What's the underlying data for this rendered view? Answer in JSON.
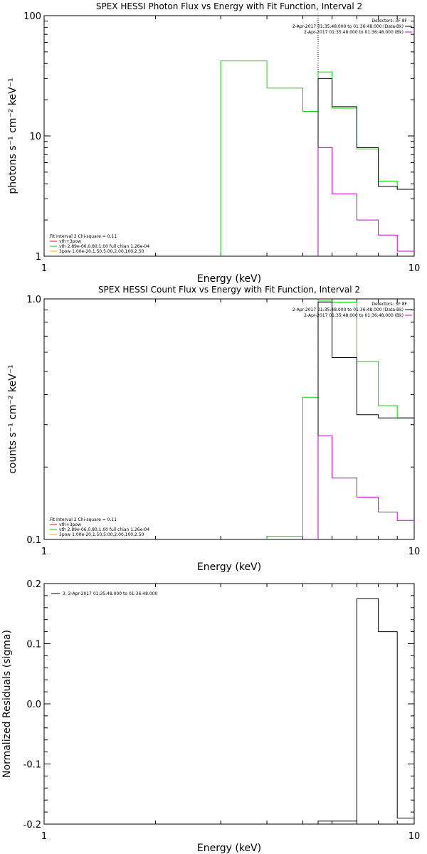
{
  "chart_data": [
    {
      "type": "line",
      "title": "SPEX HESSI Photon Flux vs Energy with Fit Function, Interval 2",
      "xlabel": "Energy (keV)",
      "ylabel": "photons s⁻¹ cm⁻² keV⁻¹",
      "xscale": "log",
      "yscale": "log",
      "xlim": [
        1,
        10
      ],
      "ylim": [
        1,
        100
      ],
      "xticks": [
        {
          "v": 1,
          "label": "1"
        },
        {
          "v": 10,
          "label": "10"
        }
      ],
      "yticks": [
        {
          "v": 1,
          "label": "1"
        },
        {
          "v": 10,
          "label": "10"
        },
        {
          "v": 100,
          "label": "100"
        }
      ],
      "vline": 5.5,
      "legend_tr": {
        "title": "Detectors: 3F 8F",
        "entries": [
          {
            "label": "2-Apr-2017 01:35:48.000 to 01:36:48.000 (Data-Bk)",
            "color": "#000000"
          },
          {
            "label": "2-Apr-2017 01:35:48.000 to 01:36:48.000 (Bk)",
            "color": "#cc00cc"
          }
        ]
      },
      "legend_bl": {
        "title": "Fit Interval 2   Chi-square = 0.11",
        "entries": [
          {
            "label": "vth+3pow",
            "color": "#ff0000"
          },
          {
            "label": "vth 2.89e-06,0.80,1.00  full chian 1.26e-04",
            "color": "#00cc00"
          },
          {
            "label": "3pow 1.00e-20,1.50,5.00,2.00,100,2.50",
            "color": "#ffaa00"
          }
        ]
      },
      "series": [
        {
          "role": "fit",
          "color": "#00dd00",
          "edges": [
            3,
            4,
            5,
            5.5,
            6,
            7,
            8,
            9,
            10
          ],
          "values": [
            42,
            25,
            16,
            34,
            17,
            7.8,
            4.2,
            3.6
          ]
        },
        {
          "role": "data",
          "color": "#000000",
          "edges": [
            5.5,
            6,
            7,
            8,
            9,
            10
          ],
          "values": [
            30,
            17.5,
            8,
            3.8,
            3.6
          ]
        },
        {
          "role": "background",
          "color": "#cc00cc",
          "edges": [
            5.5,
            6,
            7,
            8,
            9,
            10
          ],
          "values": [
            8,
            3.3,
            2.0,
            1.5,
            1.1
          ]
        }
      ]
    },
    {
      "type": "line",
      "title": "SPEX HESSI Count Flux vs Energy with Fit Function, Interval 2",
      "xlabel": "Energy (keV)",
      "ylabel": "counts s⁻¹ cm⁻² keV⁻¹",
      "xscale": "log",
      "yscale": "log",
      "xlim": [
        1,
        10
      ],
      "ylim": [
        0.1,
        1.0
      ],
      "xticks": [
        {
          "v": 1,
          "label": "1"
        },
        {
          "v": 10,
          "label": "10"
        }
      ],
      "yticks": [
        {
          "v": 0.1,
          "label": "0.1"
        },
        {
          "v": 1.0,
          "label": "1.0"
        }
      ],
      "vline": 5.5,
      "legend_tr": {
        "title": "Detectors: 3F 8F",
        "entries": [
          {
            "label": "2-Apr-2017 01:35:48.000 to 01:36:48.000 (Data-Bk)",
            "color": "#000000"
          },
          {
            "label": "2-Apr-2017 01:35:48.000 to 01:36:48.000 (Bk)",
            "color": "#cc00cc"
          }
        ]
      },
      "legend_bl": {
        "title": "Fit Interval 2   Chi-square = 0.11",
        "entries": [
          {
            "label": "vth+3pow",
            "color": "#ff0000"
          },
          {
            "label": "vth 2.89e-06,0.80,1.00  full chian 1.26e-04",
            "color": "#00cc00"
          },
          {
            "label": "3pow 1.00e-20,1.50,5.00,2.00,100,2.50",
            "color": "#ffaa00"
          }
        ]
      },
      "series": [
        {
          "role": "fit",
          "color": "#00dd00",
          "edges": [
            4,
            5,
            5.5,
            6,
            7,
            8,
            9,
            10
          ],
          "values": [
            0.103,
            0.39,
            0.98,
            0.97,
            0.55,
            0.36,
            0.32
          ]
        },
        {
          "role": "data",
          "color": "#000000",
          "edges": [
            5.5,
            6,
            7,
            8,
            9,
            10
          ],
          "values": [
            0.97,
            0.57,
            0.33,
            0.32,
            0.32
          ]
        },
        {
          "role": "background",
          "color": "#cc00cc",
          "edges": [
            5.5,
            6,
            7,
            8,
            9,
            10
          ],
          "values": [
            0.27,
            0.18,
            0.15,
            0.13,
            0.12
          ]
        }
      ]
    },
    {
      "type": "line",
      "title": "",
      "xlabel": "Energy (keV)",
      "ylabel": "Normalized Residuals (sigma)",
      "xscale": "log",
      "yscale": "linear",
      "xlim": [
        1,
        10
      ],
      "ylim": [
        -0.2,
        0.2
      ],
      "xticks": [
        {
          "v": 1,
          "label": "1"
        },
        {
          "v": 10,
          "label": "10"
        }
      ],
      "yticks": [
        {
          "v": -0.2,
          "label": "-0.2"
        },
        {
          "v": -0.1,
          "label": "-0.1"
        },
        {
          "v": 0,
          "label": "0.0"
        },
        {
          "v": 0.1,
          "label": "0.1"
        },
        {
          "v": 0.2,
          "label": "0.2"
        }
      ],
      "legend_tl": {
        "entries": [
          {
            "label": "3.  2-Apr-2017 01:35:48.000 to 01:36:48.000",
            "color": "#000000"
          }
        ]
      },
      "series": [
        {
          "role": "residual",
          "color": "#000000",
          "edges": [
            5.5,
            7,
            8,
            9,
            10
          ],
          "values": [
            -0.195,
            0.175,
            0.12,
            -0.19
          ]
        }
      ]
    }
  ]
}
